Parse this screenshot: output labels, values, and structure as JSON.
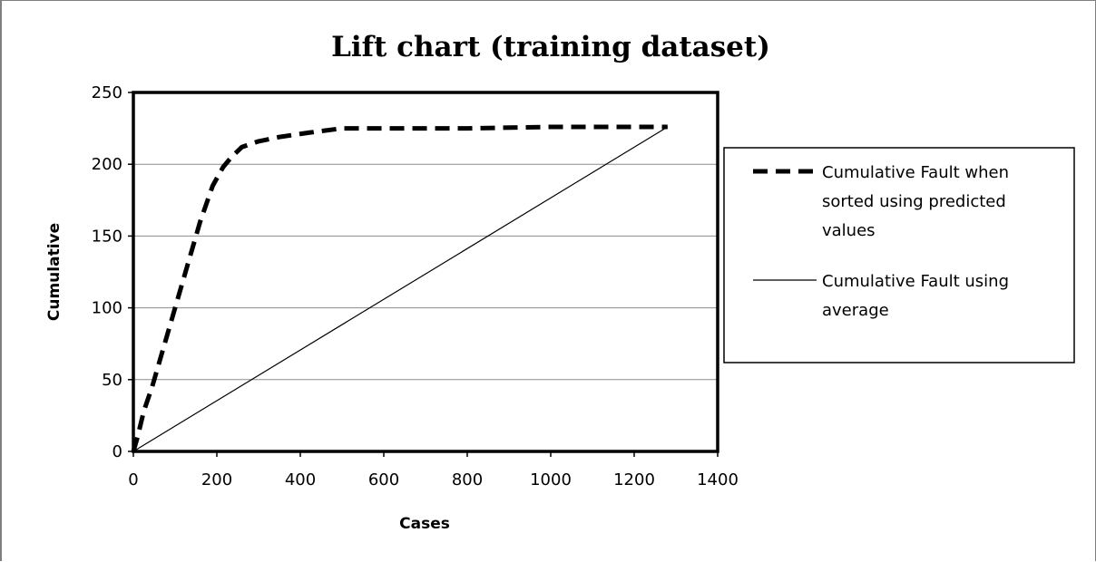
{
  "chart_data": {
    "type": "line",
    "title": "Lift chart (training dataset)",
    "xlabel": "Cases",
    "ylabel": "Cumulative",
    "xlim": [
      0,
      1400
    ],
    "ylim": [
      0,
      250
    ],
    "x_ticks": [
      0,
      200,
      400,
      600,
      800,
      1000,
      1200,
      1400
    ],
    "y_ticks": [
      0,
      50,
      100,
      150,
      200,
      250
    ],
    "grid": "horizontal",
    "legend_position": "right",
    "series": [
      {
        "name": "Cumulative Fault when sorted using predicted values",
        "legend_lines": [
          "Cumulative Fault when",
          "sorted using predicted",
          "values"
        ],
        "style": "dashed-thick",
        "color": "#000000",
        "points": [
          [
            0,
            0
          ],
          [
            10,
            10
          ],
          [
            25,
            28
          ],
          [
            45,
            45
          ],
          [
            70,
            70
          ],
          [
            100,
            100
          ],
          [
            130,
            130
          ],
          [
            160,
            160
          ],
          [
            190,
            185
          ],
          [
            215,
            198
          ],
          [
            235,
            205
          ],
          [
            260,
            212
          ],
          [
            300,
            216
          ],
          [
            350,
            219
          ],
          [
            420,
            222
          ],
          [
            500,
            225
          ],
          [
            600,
            225
          ],
          [
            800,
            225
          ],
          [
            1000,
            226
          ],
          [
            1200,
            226
          ],
          [
            1280,
            226
          ]
        ]
      },
      {
        "name": "Cumulative Fault using average",
        "legend_lines": [
          "Cumulative Fault using",
          "average"
        ],
        "style": "solid-thin",
        "color": "#000000",
        "points": [
          [
            0,
            0
          ],
          [
            1280,
            226
          ]
        ]
      }
    ]
  }
}
